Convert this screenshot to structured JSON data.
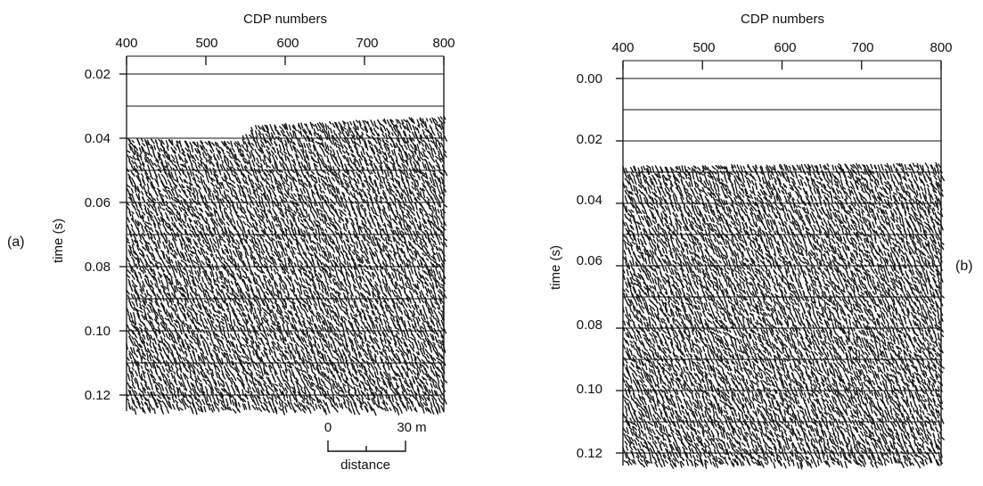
{
  "figure": {
    "panels": [
      {
        "id": "a",
        "panel_label": "(a)",
        "top_axis_title": "CDP numbers",
        "left_axis_title": "time (s)",
        "x_ticks": [
          "400",
          "500",
          "600",
          "700",
          "800"
        ],
        "y_ticks": [
          "0.02",
          "0.04",
          "0.06",
          "0.08",
          "0.10",
          "0.12"
        ],
        "scale_bar": {
          "left_label": "0",
          "right_label": "30 m",
          "caption": "distance"
        }
      },
      {
        "id": "b",
        "panel_label": "(b)",
        "top_axis_title": "CDP numbers",
        "left_axis_title": "time (s)",
        "x_ticks": [
          "400",
          "500",
          "600",
          "700",
          "800"
        ],
        "y_ticks": [
          "0.00",
          "0.02",
          "0.04",
          "0.06",
          "0.08",
          "0.10",
          "0.12"
        ]
      }
    ]
  },
  "chart_data": [
    {
      "type": "seismic-section",
      "title": "",
      "panel_label": "(a)",
      "xlabel": "CDP numbers",
      "ylabel": "time (s)",
      "xlim": [
        400,
        800
      ],
      "ylim": [
        0.02,
        0.125
      ],
      "y_reversed": true,
      "x_ticks": [
        400,
        500,
        600,
        700,
        800
      ],
      "y_ticks": [
        0.02,
        0.04,
        0.06,
        0.08,
        0.1,
        0.12
      ],
      "timing_lines_s": [
        0.02,
        0.03,
        0.04,
        0.05,
        0.06,
        0.07,
        0.08,
        0.09,
        0.1,
        0.11,
        0.12
      ],
      "first_arrival_s": [
        {
          "cdp": 400,
          "t": 0.04
        },
        {
          "cdp": 540,
          "t": 0.041
        },
        {
          "cdp": 560,
          "t": 0.036
        },
        {
          "cdp": 800,
          "t": 0.033
        }
      ],
      "record_end_s": 0.125
    },
    {
      "type": "seismic-section",
      "title": "",
      "panel_label": "(b)",
      "xlabel": "CDP numbers",
      "ylabel": "time (s)",
      "xlim": [
        400,
        800
      ],
      "ylim": [
        0.0,
        0.124
      ],
      "y_reversed": true,
      "x_ticks": [
        400,
        500,
        600,
        700,
        800
      ],
      "y_ticks": [
        0.0,
        0.02,
        0.04,
        0.06,
        0.08,
        0.1,
        0.12
      ],
      "timing_lines_s": [
        0.0,
        0.01,
        0.02,
        0.03,
        0.04,
        0.05,
        0.06,
        0.07,
        0.08,
        0.09,
        0.1,
        0.11,
        0.12
      ],
      "first_arrival_s": [
        {
          "cdp": 400,
          "t": 0.028
        },
        {
          "cdp": 800,
          "t": 0.027
        }
      ],
      "record_end_s": 0.124
    }
  ]
}
